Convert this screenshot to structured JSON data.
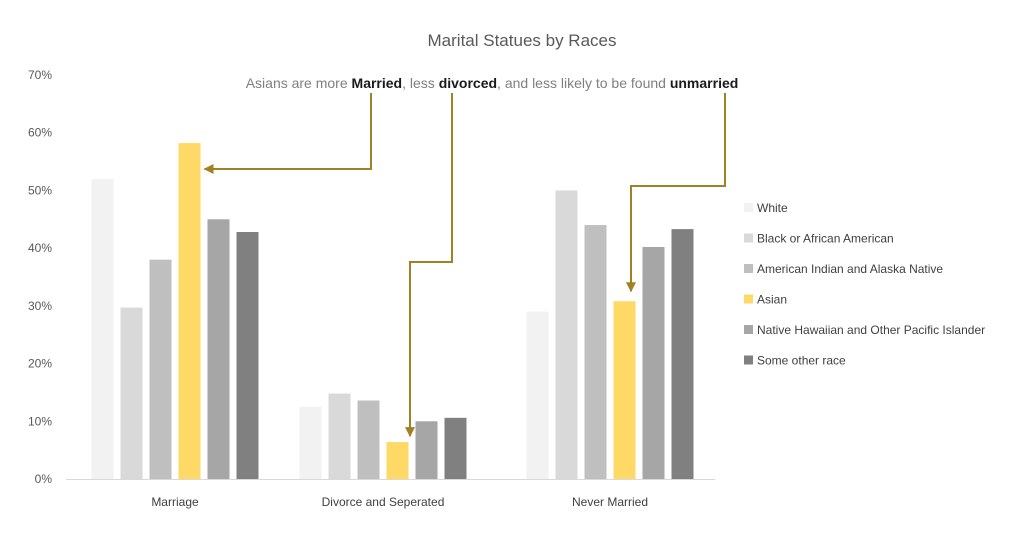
{
  "chart_data": {
    "type": "bar",
    "title": "Marital Statues by Races",
    "annotation": {
      "parts": [
        {
          "text": "Asians are more ",
          "bold": false
        },
        {
          "text": "Married",
          "bold": true
        },
        {
          "text": ", less ",
          "bold": false
        },
        {
          "text": "divorced",
          "bold": true
        },
        {
          "text": ", and less likely to be found ",
          "bold": false
        },
        {
          "text": "unmarried",
          "bold": true
        }
      ]
    },
    "categories": [
      "Marriage",
      "Divorce and Seperated",
      "Never Married"
    ],
    "ylim": [
      0,
      0.7
    ],
    "yticks": [
      "0%",
      "10%",
      "20%",
      "30%",
      "40%",
      "50%",
      "60%",
      "70%"
    ],
    "grid": false,
    "legend_position": "right",
    "series": [
      {
        "name": "White",
        "color": "#f2f2f2",
        "values": [
          0.52,
          0.125,
          0.29
        ]
      },
      {
        "name": "Black or African American",
        "color": "#d9d9d9",
        "values": [
          0.297,
          0.148,
          0.5
        ]
      },
      {
        "name": "American Indian and Alaska Native",
        "color": "#bfbfbf",
        "values": [
          0.38,
          0.136,
          0.44
        ]
      },
      {
        "name": "Asian",
        "color": "#ffd966",
        "values": [
          0.582,
          0.064,
          0.308
        ]
      },
      {
        "name": "Native Hawaiian and Other Pacific Islander",
        "color": "#a6a6a6",
        "values": [
          0.45,
          0.1,
          0.402
        ]
      },
      {
        "name": "Some other race",
        "color": "#808080",
        "values": [
          0.428,
          0.106,
          0.433
        ]
      }
    ],
    "arrow_color": "#a08225"
  }
}
